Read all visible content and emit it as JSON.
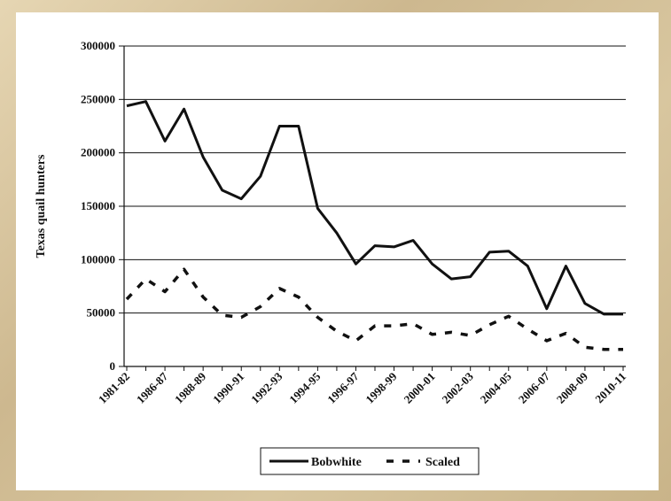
{
  "chart_data": {
    "type": "line",
    "ylabel": "Texas quail hunters",
    "xlabel": "",
    "title": "",
    "ylim": [
      0,
      300000
    ],
    "yticks": [
      0,
      50000,
      100000,
      150000,
      200000,
      250000,
      300000
    ],
    "x_tick_labels": [
      "1981-82",
      "1986-87",
      "1988-89",
      "1990-91",
      "1992-93",
      "1994-95",
      "1996-97",
      "1998-99",
      "2000-01",
      "2002-03",
      "2004-05",
      "2006-07",
      "2008-09",
      "2010-11"
    ],
    "grid": true,
    "legend_position": "bottom",
    "series": [
      {
        "name": "Bobwhite",
        "style": "solid",
        "color": "#111111",
        "values": [
          244000,
          248000,
          211000,
          241000,
          196000,
          165000,
          157000,
          178000,
          225000,
          225000,
          148000,
          125000,
          96000,
          113000,
          112000,
          118000,
          96000,
          82000,
          84000,
          107000,
          108000,
          94000,
          54000,
          94000,
          59000,
          49000,
          49000
        ]
      },
      {
        "name": "Scaled",
        "style": "dashed",
        "color": "#111111",
        "values": [
          63000,
          82000,
          70000,
          91000,
          65000,
          48000,
          46000,
          56000,
          73000,
          65000,
          46000,
          33000,
          24000,
          38000,
          38000,
          40000,
          30000,
          32000,
          29000,
          39000,
          47000,
          35000,
          24000,
          31000,
          18000,
          16000,
          16000
        ]
      }
    ]
  }
}
